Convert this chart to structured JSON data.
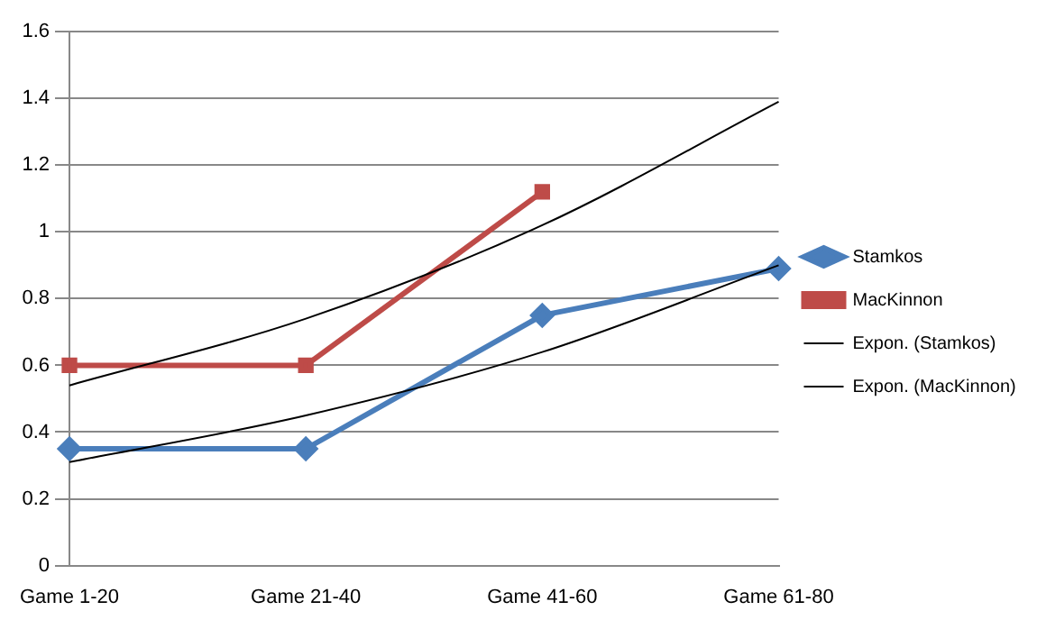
{
  "chart_data": {
    "type": "line",
    "categories": [
      "Game 1-20",
      "Game 21-40",
      "Game 41-60",
      "Game 61-80"
    ],
    "series": [
      {
        "name": "Stamkos",
        "color": "#4a7ebb",
        "values": [
          0.35,
          0.35,
          0.75,
          0.89
        ],
        "marker": "diamond"
      },
      {
        "name": "MacKinnon",
        "color": "#be4b48",
        "values": [
          0.6,
          0.6,
          1.12,
          null
        ],
        "marker": "square"
      },
      {
        "name": "Expon. (Stamkos)",
        "color": "#000000",
        "values": [
          0.31,
          0.45,
          0.64,
          0.9
        ],
        "marker": "none"
      },
      {
        "name": "Expon. (MacKinnon)",
        "color": "#000000",
        "values": [
          0.54,
          0.74,
          1.02,
          1.39
        ],
        "marker": "none"
      }
    ],
    "ylim": [
      0,
      1.6
    ],
    "yticks": [
      0,
      0.2,
      0.4,
      0.6,
      0.8,
      1,
      1.2,
      1.4,
      1.6
    ],
    "grid": "y",
    "legend": "right"
  }
}
